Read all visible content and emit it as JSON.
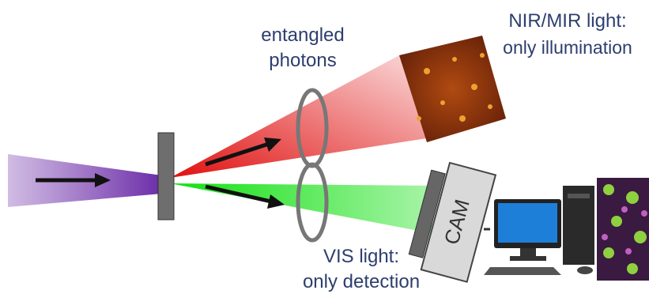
{
  "labels": {
    "entangled": [
      "entangled",
      "photons"
    ],
    "nir": [
      "NIR/MIR light:",
      "only illumination"
    ],
    "vis": [
      "VIS light:",
      "only detection"
    ],
    "camera": "CAM"
  }
}
